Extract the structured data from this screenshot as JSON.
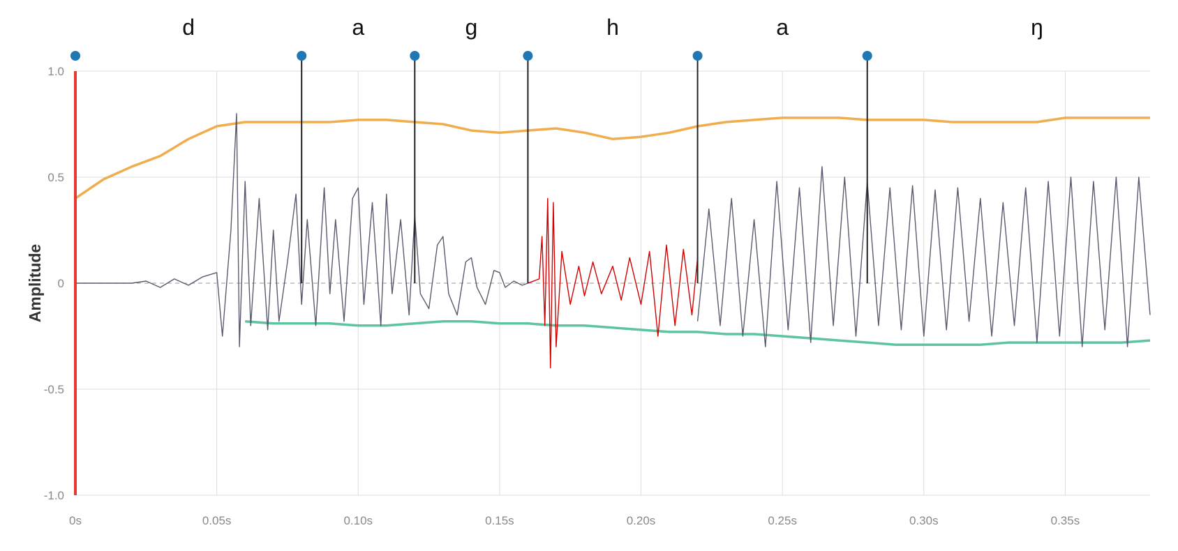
{
  "chart_data": {
    "type": "line",
    "ylabel": "Amplitude",
    "xlabel": "",
    "xlim": [
      0,
      0.38
    ],
    "ylim": [
      -1.0,
      1.0
    ],
    "grid": true,
    "x_ticks": [
      {
        "value": 0,
        "label": "0s"
      },
      {
        "value": 0.05,
        "label": "0.05s"
      },
      {
        "value": 0.1,
        "label": "0.10s"
      },
      {
        "value": 0.15,
        "label": "0.15s"
      },
      {
        "value": 0.2,
        "label": "0.20s"
      },
      {
        "value": 0.25,
        "label": "0.25s"
      },
      {
        "value": 0.3,
        "label": "0.30s"
      },
      {
        "value": 0.35,
        "label": "0.35s"
      }
    ],
    "y_ticks": [
      {
        "value": 1.0,
        "label": "1.0"
      },
      {
        "value": 0.5,
        "label": "0.5"
      },
      {
        "value": 0,
        "label": "0"
      },
      {
        "value": -0.5,
        "label": "-0.5"
      },
      {
        "value": -1.0,
        "label": "-1.0"
      }
    ],
    "segment_boundaries": [
      0,
      0.08,
      0.12,
      0.16,
      0.22,
      0.28
    ],
    "phonemes": [
      {
        "label": "d",
        "x": 0.04
      },
      {
        "label": "a",
        "x": 0.1
      },
      {
        "label": "g",
        "x": 0.14
      },
      {
        "label": "h",
        "x": 0.19
      },
      {
        "label": "a",
        "x": 0.25
      },
      {
        "label": "ŋ",
        "x": 0.34
      }
    ],
    "playhead": 0,
    "highlight_range": [
      0.16,
      0.22
    ],
    "series": [
      {
        "role": "upper-envelope",
        "color": "#f0ad4e",
        "x": [
          0,
          0.01,
          0.02,
          0.03,
          0.04,
          0.05,
          0.06,
          0.07,
          0.08,
          0.09,
          0.1,
          0.11,
          0.12,
          0.13,
          0.14,
          0.15,
          0.16,
          0.17,
          0.18,
          0.19,
          0.2,
          0.21,
          0.22,
          0.23,
          0.24,
          0.25,
          0.26,
          0.27,
          0.28,
          0.29,
          0.3,
          0.31,
          0.32,
          0.33,
          0.34,
          0.35,
          0.36,
          0.37,
          0.38
        ],
        "values": [
          0.4,
          0.49,
          0.55,
          0.6,
          0.68,
          0.74,
          0.76,
          0.76,
          0.76,
          0.76,
          0.77,
          0.77,
          0.76,
          0.75,
          0.72,
          0.71,
          0.72,
          0.73,
          0.71,
          0.68,
          0.69,
          0.71,
          0.74,
          0.76,
          0.77,
          0.78,
          0.78,
          0.78,
          0.77,
          0.77,
          0.77,
          0.76,
          0.76,
          0.76,
          0.76,
          0.78,
          0.78,
          0.78,
          0.78
        ]
      },
      {
        "role": "lower-envelope",
        "color": "#5ec4a0",
        "x": [
          0.06,
          0.07,
          0.08,
          0.09,
          0.1,
          0.11,
          0.12,
          0.13,
          0.14,
          0.15,
          0.16,
          0.17,
          0.18,
          0.19,
          0.2,
          0.21,
          0.22,
          0.23,
          0.24,
          0.25,
          0.26,
          0.27,
          0.28,
          0.29,
          0.3,
          0.31,
          0.32,
          0.33,
          0.34,
          0.35,
          0.36,
          0.37,
          0.38
        ],
        "values": [
          -0.18,
          -0.19,
          -0.19,
          -0.19,
          -0.2,
          -0.2,
          -0.19,
          -0.18,
          -0.18,
          -0.19,
          -0.19,
          -0.2,
          -0.2,
          -0.21,
          -0.22,
          -0.23,
          -0.23,
          -0.24,
          -0.24,
          -0.25,
          -0.26,
          -0.27,
          -0.28,
          -0.29,
          -0.29,
          -0.29,
          -0.29,
          -0.28,
          -0.28,
          -0.28,
          -0.28,
          -0.28,
          -0.27
        ]
      },
      {
        "role": "waveform",
        "color": "#5a5a6e",
        "x": [
          0,
          0.02,
          0.025,
          0.03,
          0.035,
          0.04,
          0.045,
          0.05,
          0.052,
          0.055,
          0.057,
          0.058,
          0.06,
          0.062,
          0.065,
          0.068,
          0.07,
          0.072,
          0.075,
          0.078,
          0.08,
          0.082,
          0.085,
          0.088,
          0.09,
          0.092,
          0.095,
          0.098,
          0.1,
          0.102,
          0.105,
          0.108,
          0.11,
          0.112,
          0.115,
          0.118,
          0.12,
          0.122,
          0.125,
          0.128,
          0.13,
          0.132,
          0.135,
          0.138,
          0.14,
          0.142,
          0.145,
          0.148,
          0.15,
          0.152,
          0.155,
          0.158,
          0.16
        ],
        "values": [
          0,
          0,
          0.01,
          -0.02,
          0.02,
          -0.01,
          0.03,
          0.05,
          -0.25,
          0.25,
          0.8,
          -0.3,
          0.48,
          -0.2,
          0.4,
          -0.22,
          0.25,
          -0.18,
          0.1,
          0.42,
          -0.1,
          0.3,
          -0.2,
          0.45,
          -0.05,
          0.3,
          -0.18,
          0.4,
          0.45,
          -0.1,
          0.38,
          -0.2,
          0.42,
          -0.05,
          0.3,
          -0.15,
          0.32,
          -0.05,
          -0.12,
          0.18,
          0.22,
          -0.05,
          -0.15,
          0.1,
          0.12,
          -0.02,
          -0.1,
          0.06,
          0.05,
          -0.02,
          0.01,
          -0.01,
          0
        ]
      },
      {
        "role": "waveform-highlight",
        "color": "#d10000",
        "x": [
          0.16,
          0.162,
          0.164,
          0.165,
          0.166,
          0.167,
          0.168,
          0.169,
          0.17,
          0.172,
          0.175,
          0.178,
          0.18,
          0.183,
          0.186,
          0.19,
          0.193,
          0.196,
          0.2,
          0.203,
          0.206,
          0.209,
          0.212,
          0.215,
          0.218,
          0.22
        ],
        "values": [
          0,
          0.01,
          0.02,
          0.22,
          -0.2,
          0.4,
          -0.4,
          0.38,
          -0.3,
          0.15,
          -0.1,
          0.08,
          -0.06,
          0.1,
          -0.05,
          0.08,
          -0.08,
          0.12,
          -0.1,
          0.15,
          -0.25,
          0.18,
          -0.2,
          0.16,
          -0.15,
          0.12
        ]
      },
      {
        "role": "waveform",
        "color": "#5a5a6e",
        "x": [
          0.22,
          0.224,
          0.228,
          0.232,
          0.236,
          0.24,
          0.244,
          0.248,
          0.252,
          0.256,
          0.26,
          0.264,
          0.268,
          0.272,
          0.276,
          0.28,
          0.284,
          0.288,
          0.292,
          0.296,
          0.3,
          0.304,
          0.308,
          0.312,
          0.316,
          0.32,
          0.324,
          0.328,
          0.332,
          0.336,
          0.34,
          0.344,
          0.348,
          0.352,
          0.356,
          0.36,
          0.364,
          0.368,
          0.372,
          0.376,
          0.38
        ],
        "values": [
          -0.18,
          0.35,
          -0.2,
          0.4,
          -0.25,
          0.3,
          -0.3,
          0.48,
          -0.22,
          0.45,
          -0.28,
          0.55,
          -0.2,
          0.5,
          -0.25,
          0.48,
          -0.2,
          0.45,
          -0.22,
          0.46,
          -0.25,
          0.44,
          -0.22,
          0.45,
          -0.18,
          0.4,
          -0.25,
          0.38,
          -0.2,
          0.45,
          -0.28,
          0.48,
          -0.25,
          0.5,
          -0.3,
          0.48,
          -0.22,
          0.5,
          -0.3,
          0.5,
          -0.15
        ]
      }
    ]
  }
}
